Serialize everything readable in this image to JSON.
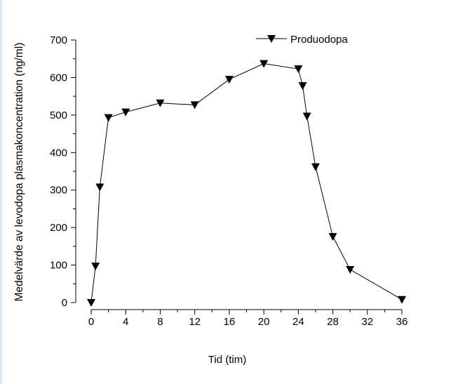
{
  "chart_data": {
    "type": "line",
    "title": "",
    "xlabel": "Tid (tim)",
    "ylabel": "Medelvärde av levodopa plasmakoncentration (ng/ml)",
    "xlim": [
      0,
      36
    ],
    "ylim": [
      0,
      700
    ],
    "xticks": [
      0,
      4,
      8,
      12,
      16,
      20,
      24,
      28,
      32,
      36
    ],
    "yticks": [
      0,
      100,
      200,
      300,
      400,
      500,
      600,
      700
    ],
    "grid": false,
    "legend": {
      "placement": "top-right",
      "entries": [
        "Produodopa"
      ]
    },
    "series": [
      {
        "name": "Produodopa",
        "marker": "triangle-down",
        "color": "#000000",
        "x": [
          0,
          0.5,
          1,
          2,
          4,
          8,
          12,
          16,
          20,
          24,
          24.5,
          25,
          26,
          28,
          30,
          36
        ],
        "y": [
          0,
          97,
          308,
          493,
          508,
          532,
          527,
          595,
          637,
          623,
          578,
          497,
          362,
          176,
          88,
          8
        ]
      }
    ]
  }
}
